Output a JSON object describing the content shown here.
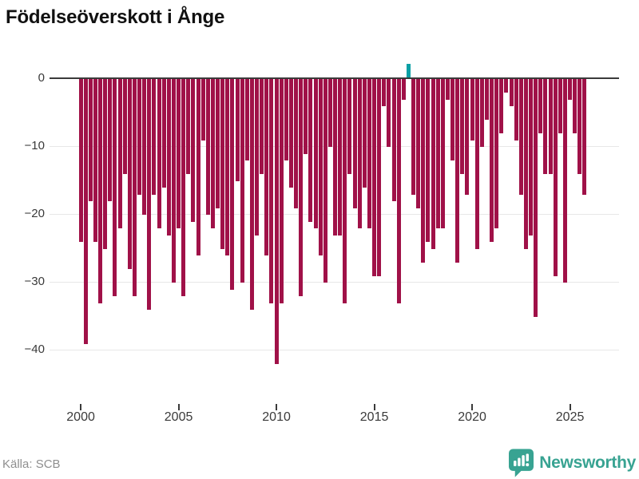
{
  "chart_data": {
    "type": "bar",
    "title": "Födelseöverskott i Ånge",
    "frequency": "quarterly",
    "start_period": "2000-Q1",
    "end_period": "2025-Q4",
    "values": [
      -24,
      -39,
      -18,
      -24,
      -33,
      -25,
      -18,
      -32,
      -22,
      -14,
      -28,
      -32,
      -17,
      -20,
      -34,
      -17,
      -22,
      -16,
      -23,
      -30,
      -22,
      -32,
      -14,
      -21,
      -26,
      -9,
      -20,
      -22,
      -19,
      -25,
      -26,
      -31,
      -15,
      -30,
      -12,
      -34,
      -23,
      -14,
      -26,
      -33,
      -42,
      -33,
      -12,
      -16,
      -19,
      -32,
      -11,
      -21,
      -22,
      -26,
      -30,
      -10,
      -23,
      -23,
      -33,
      -14,
      -19,
      -22,
      -16,
      -22,
      -29,
      -29,
      -4,
      -10,
      -18,
      -33,
      -3,
      2,
      -17,
      -19,
      -27,
      -24,
      -25,
      -22,
      -22,
      -3,
      -12,
      -27,
      -14,
      -17,
      -9,
      -25,
      -10,
      -6,
      -24,
      -22,
      -8,
      -2,
      -4,
      -9,
      -17,
      -25,
      -23,
      -35,
      -8,
      -14,
      -14,
      -29,
      -8,
      -30,
      -3,
      -8,
      -14,
      -17
    ],
    "x_tick_labels": [
      "2000",
      "2005",
      "2010",
      "2015",
      "2020",
      "2025"
    ],
    "y_tick_labels": [
      "0",
      "−10",
      "−20",
      "−30",
      "−40"
    ],
    "y_ticks": [
      0,
      -10,
      -20,
      -30,
      -40
    ],
    "ylim": [
      -45,
      2.5
    ],
    "grid": "horizontal",
    "legend": "none",
    "colors": {
      "bar_negative": "#a01148",
      "bar_positive": "#0aa0a5",
      "zero_axis": "#3a3a3a",
      "gridline": "#e7e7e7",
      "tick_text": "#3a3a3a"
    }
  },
  "footer": {
    "source": "Källa: SCB",
    "brand": "Newsworthy",
    "brand_color": "#38a392"
  }
}
